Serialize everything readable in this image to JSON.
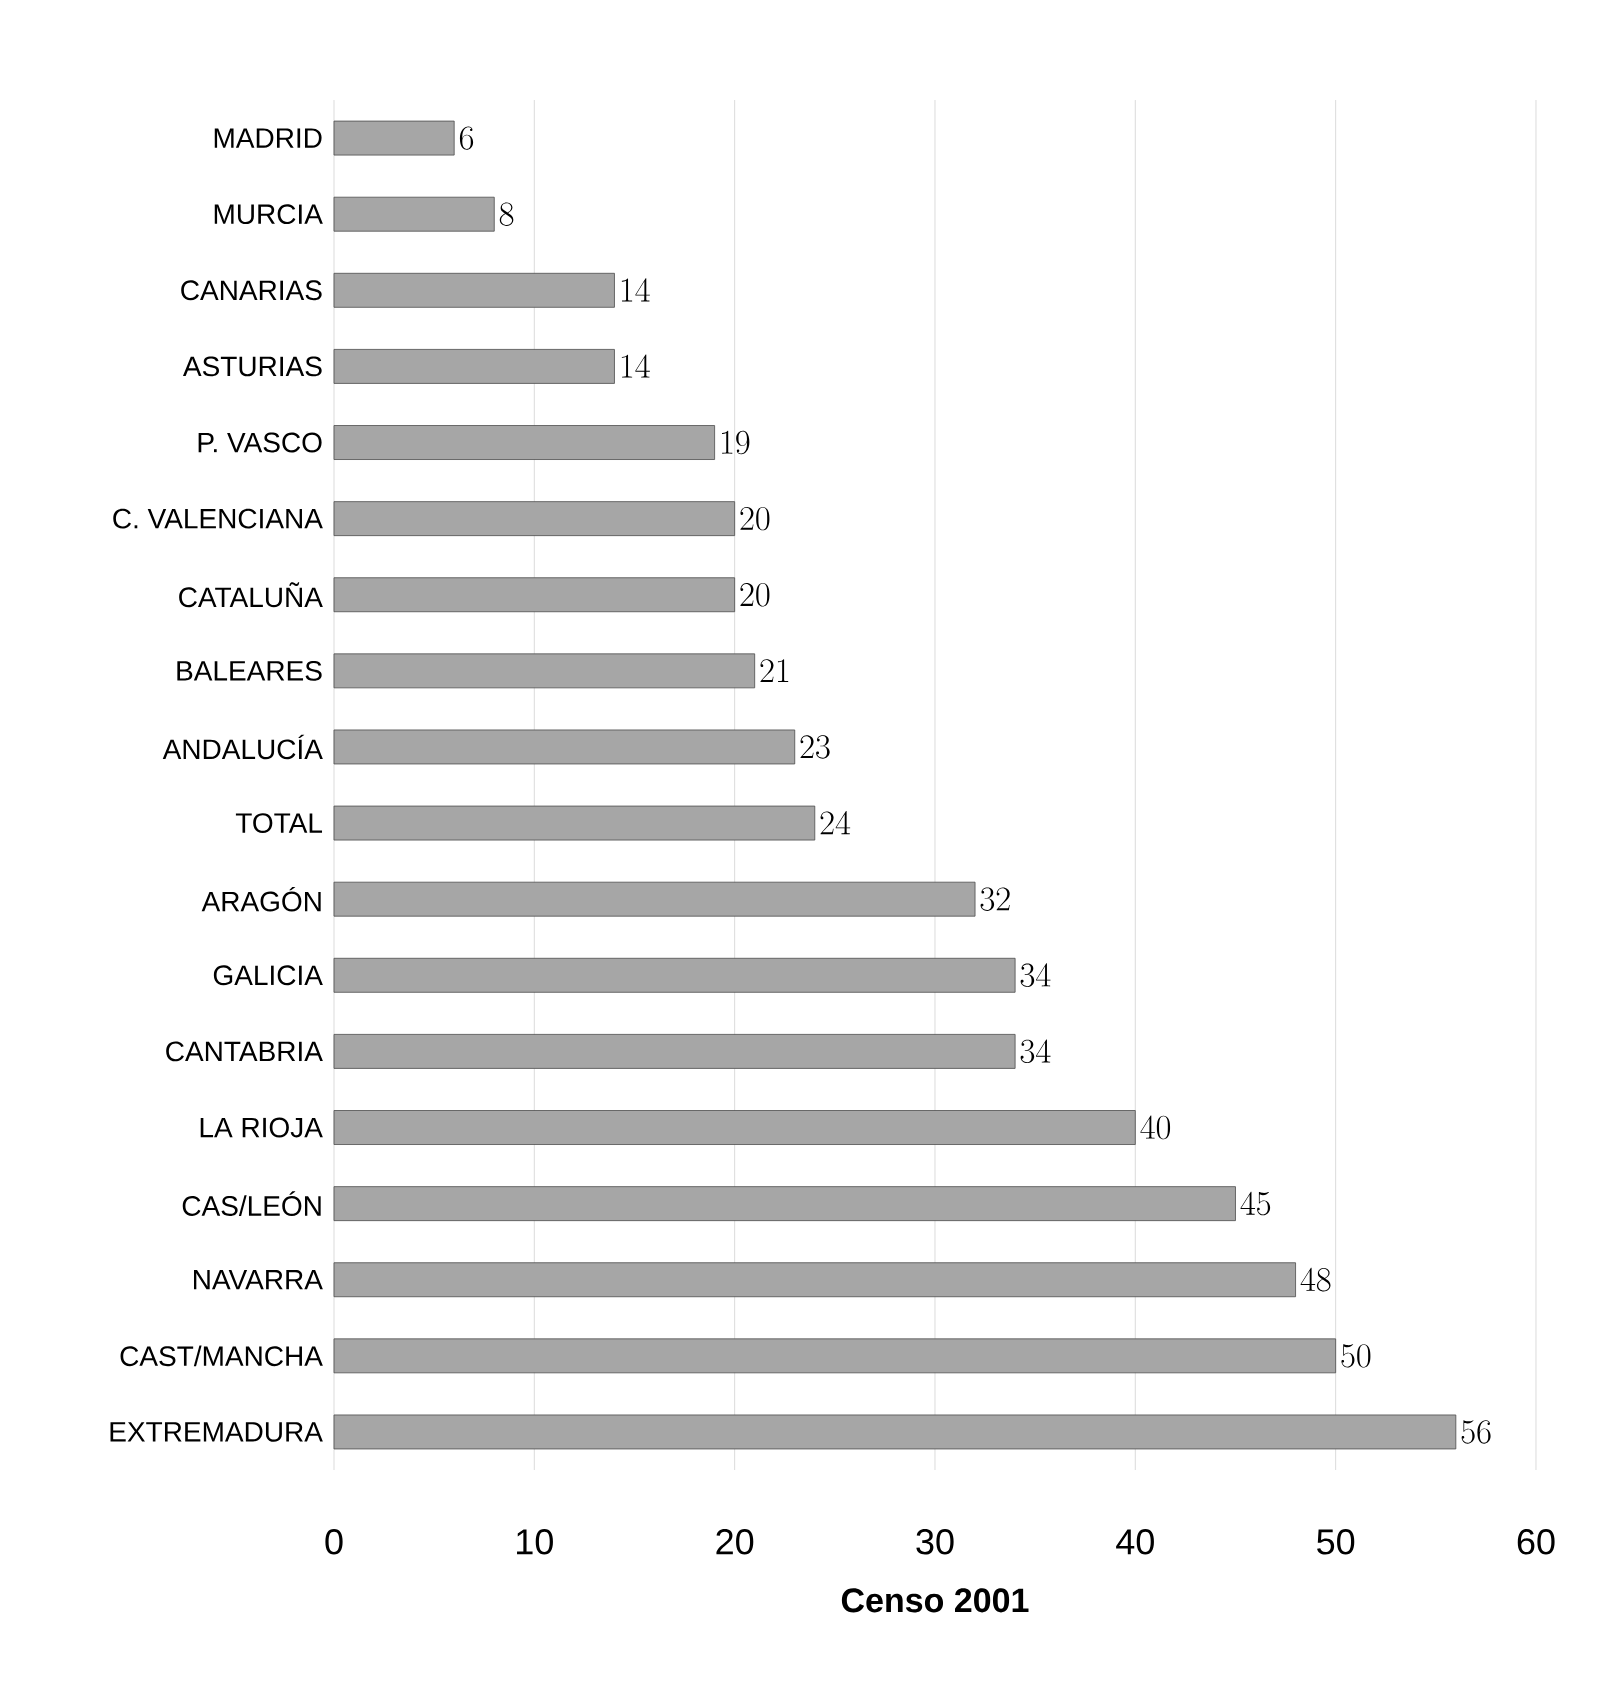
{
  "chart_data": {
    "type": "bar",
    "orientation": "horizontal",
    "xlabel": "Censo 2001",
    "categories": [
      "MADRID",
      "MURCIA",
      "CANARIAS",
      "ASTURIAS",
      "P. VASCO",
      "C. VALENCIANA",
      "CATALUÑA",
      "BALEARES",
      "ANDALUCÍA",
      "TOTAL",
      "ARAGÓN",
      "GALICIA",
      "CANTABRIA",
      "LA RIOJA",
      "CAS/LEÓN",
      "NAVARRA",
      "CAST/MANCHA",
      "EXTREMADURA"
    ],
    "values": [
      6,
      8,
      14,
      14,
      19,
      20,
      20,
      21,
      23,
      24,
      32,
      34,
      34,
      40,
      45,
      48,
      50,
      56
    ],
    "color": "#a6a6a6",
    "xlim": [
      0,
      60
    ],
    "xticks": [
      0,
      10,
      20,
      30,
      40,
      50,
      60
    ],
    "grid": "x",
    "data_labels": true
  }
}
